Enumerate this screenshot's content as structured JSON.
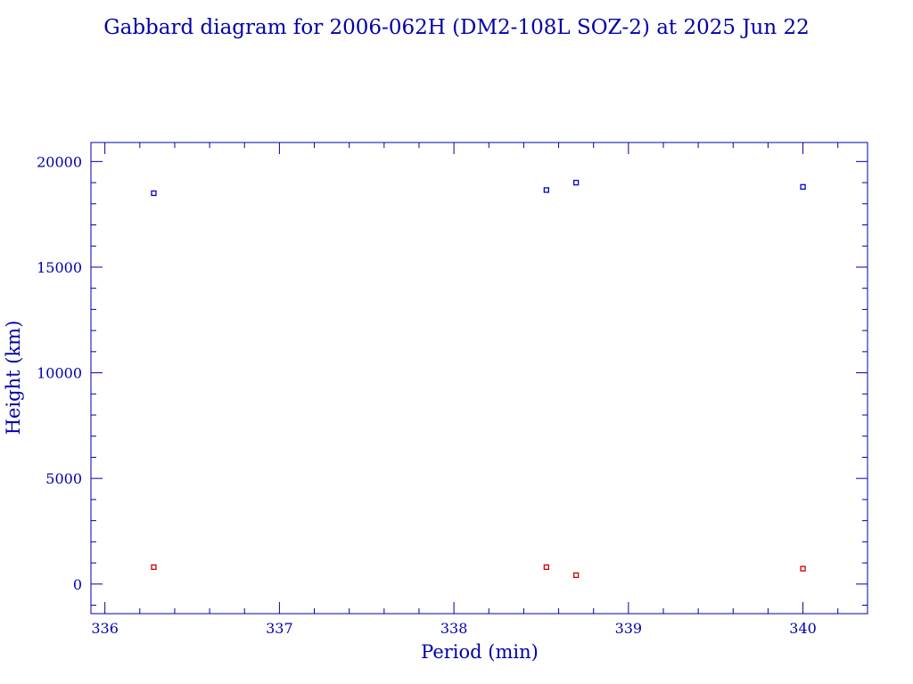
{
  "chart_data": {
    "type": "scatter",
    "title": "Gabbard diagram for 2006-062H (DM2-108L SOZ-2) at 2025 Jun 22",
    "xlabel": "Period (min)",
    "ylabel": "Height (km)",
    "xlim": [
      335.92,
      340.37
    ],
    "ylim": [
      -1400,
      20900
    ],
    "x_ticks": [
      336,
      337,
      338,
      339,
      340
    ],
    "y_ticks": [
      0,
      5000,
      10000,
      15000,
      20000
    ],
    "x_minor_step": 0.2,
    "y_minor_step": 1000,
    "grid": false,
    "legend": "none",
    "series": [
      {
        "role": "apogee",
        "color": "#0000cc",
        "points": [
          {
            "x": 336.28,
            "y": 18500
          },
          {
            "x": 338.53,
            "y": 18650
          },
          {
            "x": 338.7,
            "y": 19000
          },
          {
            "x": 340.0,
            "y": 18800
          }
        ]
      },
      {
        "role": "perigee",
        "color": "#cc0000",
        "points": [
          {
            "x": 336.28,
            "y": 800
          },
          {
            "x": 338.53,
            "y": 800
          },
          {
            "x": 338.7,
            "y": 420
          },
          {
            "x": 340.0,
            "y": 730
          }
        ]
      }
    ],
    "frame_color": "#0000aa"
  }
}
